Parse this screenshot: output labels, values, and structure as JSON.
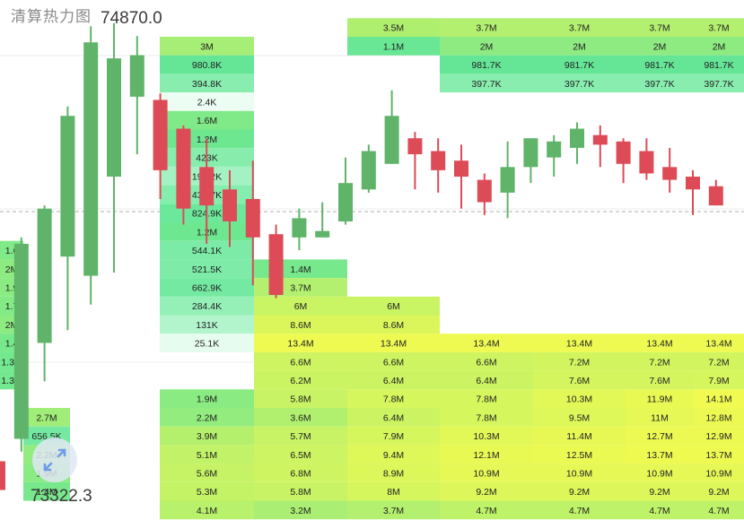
{
  "title": "清算热力图",
  "price_top": "74870.0",
  "price_bottom": "73322.3",
  "colors": {
    "up": "#5fb469",
    "down": "#dd4b57",
    "grid": "#ececec"
  },
  "icons": {
    "expand": "expand-arrows-icon"
  },
  "chart_data": {
    "type": "heatmap",
    "title": "清算热力图",
    "ylim": [
      73322.3,
      74870.0
    ],
    "overlay": "candlestick",
    "candles": [
      {
        "o": 73450,
        "h": 73500,
        "l": 73340,
        "c": 73360
      },
      {
        "o": 73520,
        "h": 74150,
        "l": 73480,
        "c": 74130
      },
      {
        "o": 73820,
        "h": 74250,
        "l": 73700,
        "c": 74240
      },
      {
        "o": 74090,
        "h": 74560,
        "l": 73860,
        "c": 74530
      },
      {
        "o": 74030,
        "h": 74810,
        "l": 73940,
        "c": 74760
      },
      {
        "o": 74340,
        "h": 74820,
        "l": 74040,
        "c": 74710
      },
      {
        "o": 74590,
        "h": 74780,
        "l": 74410,
        "c": 74720
      },
      {
        "o": 74580,
        "h": 74600,
        "l": 74270,
        "c": 74360
      },
      {
        "o": 74490,
        "h": 74500,
        "l": 74190,
        "c": 74240
      },
      {
        "o": 74370,
        "h": 74460,
        "l": 74130,
        "c": 74250
      },
      {
        "o": 74300,
        "h": 74360,
        "l": 74120,
        "c": 74200
      },
      {
        "o": 74270,
        "h": 74390,
        "l": 74000,
        "c": 74150
      },
      {
        "o": 74160,
        "h": 74190,
        "l": 73960,
        "c": 73970
      },
      {
        "o": 74150,
        "h": 74240,
        "l": 74110,
        "c": 74210
      },
      {
        "o": 74150,
        "h": 74260,
        "l": 74150,
        "c": 74170
      },
      {
        "o": 74200,
        "h": 74400,
        "l": 74190,
        "c": 74320
      },
      {
        "o": 74300,
        "h": 74440,
        "l": 74290,
        "c": 74420
      },
      {
        "o": 74380,
        "h": 74610,
        "l": 74380,
        "c": 74530
      },
      {
        "o": 74460,
        "h": 74480,
        "l": 74300,
        "c": 74410
      },
      {
        "o": 74420,
        "h": 74460,
        "l": 74290,
        "c": 74360
      },
      {
        "o": 74390,
        "h": 74440,
        "l": 74240,
        "c": 74340
      },
      {
        "o": 74330,
        "h": 74350,
        "l": 74220,
        "c": 74260
      },
      {
        "o": 74290,
        "h": 74450,
        "l": 74210,
        "c": 74370
      },
      {
        "o": 74370,
        "h": 74460,
        "l": 74320,
        "c": 74460
      },
      {
        "o": 74400,
        "h": 74470,
        "l": 74340,
        "c": 74450
      },
      {
        "o": 74430,
        "h": 74510,
        "l": 74380,
        "c": 74490
      },
      {
        "o": 74470,
        "h": 74500,
        "l": 74370,
        "c": 74440
      },
      {
        "o": 74450,
        "h": 74460,
        "l": 74320,
        "c": 74380
      },
      {
        "o": 74420,
        "h": 74460,
        "l": 74330,
        "c": 74350
      },
      {
        "o": 74370,
        "h": 74430,
        "l": 74290,
        "c": 74330
      },
      {
        "o": 74340,
        "h": 74360,
        "l": 74220,
        "c": 74300
      },
      {
        "o": 74310,
        "h": 74330,
        "l": 74250,
        "c": 74250
      }
    ],
    "cells": [
      {
        "c": 3,
        "r": 0,
        "v": "3M"
      },
      {
        "c": 3,
        "r": 1,
        "v": "980.8K"
      },
      {
        "c": 3,
        "r": 2,
        "v": "394.8K"
      },
      {
        "c": 3,
        "r": 3,
        "v": "2.4K"
      },
      {
        "c": 3,
        "r": 4,
        "v": "1.6M"
      },
      {
        "c": 3,
        "r": 5,
        "v": "1.2M"
      },
      {
        "c": 3,
        "r": 6,
        "v": "423K"
      },
      {
        "c": 3,
        "r": 7,
        "v": "191.2K"
      },
      {
        "c": 3,
        "r": 8,
        "v": "432.7K"
      },
      {
        "c": 3,
        "r": 9,
        "v": "824.9K"
      },
      {
        "c": 3,
        "r": 10,
        "v": "1.2M"
      },
      {
        "c": 3,
        "r": 11,
        "v": "544.1K"
      },
      {
        "c": 3,
        "r": 12,
        "v": "521.5K"
      },
      {
        "c": 3,
        "r": 13,
        "v": "662.9K"
      },
      {
        "c": 3,
        "r": 14,
        "v": "284.4K"
      },
      {
        "c": 3,
        "r": 15,
        "v": "131K"
      },
      {
        "c": 3,
        "r": 16,
        "v": "25.1K"
      },
      {
        "c": 3,
        "r": 19,
        "v": "1.9M"
      },
      {
        "c": 3,
        "r": 20,
        "v": "2.2M"
      },
      {
        "c": 3,
        "r": 21,
        "v": "3.9M"
      },
      {
        "c": 3,
        "r": 22,
        "v": "5.1M"
      },
      {
        "c": 3,
        "r": 23,
        "v": "5.6M"
      },
      {
        "c": 3,
        "r": 24,
        "v": "5.3M"
      },
      {
        "c": 3,
        "r": 25,
        "v": "4.1M"
      },
      {
        "c": 4,
        "r": 12,
        "v": "1.4M"
      },
      {
        "c": 4,
        "r": 13,
        "v": "3.7M"
      },
      {
        "c": 4,
        "r": 14,
        "v": "6M"
      },
      {
        "c": 4,
        "r": 15,
        "v": "8.6M"
      },
      {
        "c": 4,
        "r": 16,
        "v": "13.4M"
      },
      {
        "c": 4,
        "r": 17,
        "v": "6.6M"
      },
      {
        "c": 4,
        "r": 18,
        "v": "6.2M"
      },
      {
        "c": 4,
        "r": 19,
        "v": "5.8M"
      },
      {
        "c": 4,
        "r": 20,
        "v": "3.6M"
      },
      {
        "c": 4,
        "r": 21,
        "v": "5.7M"
      },
      {
        "c": 4,
        "r": 22,
        "v": "6.5M"
      },
      {
        "c": 4,
        "r": 23,
        "v": "6.8M"
      },
      {
        "c": 4,
        "r": 24,
        "v": "5.8M"
      },
      {
        "c": 4,
        "r": 25,
        "v": "3.2M"
      },
      {
        "c": 5,
        "r": -1,
        "v": "3.5M"
      },
      {
        "c": 5,
        "r": 0,
        "v": "1.1M"
      },
      {
        "c": 5,
        "r": 14,
        "v": "6M"
      },
      {
        "c": 5,
        "r": 15,
        "v": "8.6M"
      },
      {
        "c": 5,
        "r": 16,
        "v": "13.4M"
      },
      {
        "c": 5,
        "r": 17,
        "v": "6.6M"
      },
      {
        "c": 5,
        "r": 18,
        "v": "6.4M"
      },
      {
        "c": 5,
        "r": 19,
        "v": "7.8M"
      },
      {
        "c": 5,
        "r": 20,
        "v": "6.4M"
      },
      {
        "c": 5,
        "r": 21,
        "v": "7.9M"
      },
      {
        "c": 5,
        "r": 22,
        "v": "9.4M"
      },
      {
        "c": 5,
        "r": 23,
        "v": "8.9M"
      },
      {
        "c": 5,
        "r": 24,
        "v": "8M"
      },
      {
        "c": 5,
        "r": 25,
        "v": "3.7M"
      },
      {
        "c": 6,
        "r": -1,
        "v": "3.7M"
      },
      {
        "c": 6,
        "r": 0,
        "v": "2M"
      },
      {
        "c": 6,
        "r": 1,
        "v": "981.7K"
      },
      {
        "c": 6,
        "r": 2,
        "v": "397.7K"
      },
      {
        "c": 6,
        "r": 16,
        "v": "13.4M"
      },
      {
        "c": 6,
        "r": 17,
        "v": "6.6M"
      },
      {
        "c": 6,
        "r": 18,
        "v": "6.4M"
      },
      {
        "c": 6,
        "r": 19,
        "v": "7.8M"
      },
      {
        "c": 6,
        "r": 20,
        "v": "7.8M"
      },
      {
        "c": 6,
        "r": 21,
        "v": "10.3M"
      },
      {
        "c": 6,
        "r": 22,
        "v": "12.1M"
      },
      {
        "c": 6,
        "r": 23,
        "v": "10.9M"
      },
      {
        "c": 6,
        "r": 24,
        "v": "9.2M"
      },
      {
        "c": 6,
        "r": 25,
        "v": "4.7M"
      },
      {
        "c": 7,
        "r": -1,
        "v": "3.7M"
      },
      {
        "c": 7,
        "r": 0,
        "v": "2M"
      },
      {
        "c": 7,
        "r": 1,
        "v": "981.7K"
      },
      {
        "c": 7,
        "r": 2,
        "v": "397.7K"
      },
      {
        "c": 7,
        "r": 16,
        "v": "13.4M"
      },
      {
        "c": 7,
        "r": 17,
        "v": "7.2M"
      },
      {
        "c": 7,
        "r": 18,
        "v": "7.6M"
      },
      {
        "c": 7,
        "r": 19,
        "v": "10.3M"
      },
      {
        "c": 7,
        "r": 20,
        "v": "9.5M"
      },
      {
        "c": 7,
        "r": 21,
        "v": "11.4M"
      },
      {
        "c": 7,
        "r": 22,
        "v": "12.5M"
      },
      {
        "c": 7,
        "r": 23,
        "v": "10.9M"
      },
      {
        "c": 7,
        "r": 24,
        "v": "9.2M"
      },
      {
        "c": 7,
        "r": 25,
        "v": "4.7M"
      },
      {
        "c": 8,
        "r": -1,
        "v": "3.7M"
      },
      {
        "c": 8,
        "r": 0,
        "v": "2M"
      },
      {
        "c": 8,
        "r": 1,
        "v": "981.7K"
      },
      {
        "c": 8,
        "r": 2,
        "v": "397.7K"
      },
      {
        "c": 8,
        "r": 16,
        "v": "13.4M"
      },
      {
        "c": 8,
        "r": 17,
        "v": "7.2M"
      },
      {
        "c": 8,
        "r": 18,
        "v": "7.6M"
      },
      {
        "c": 8,
        "r": 19,
        "v": "11.9M"
      },
      {
        "c": 8,
        "r": 20,
        "v": "11M"
      },
      {
        "c": 8,
        "r": 21,
        "v": "12.7M"
      },
      {
        "c": 8,
        "r": 22,
        "v": "13.7M"
      },
      {
        "c": 8,
        "r": 23,
        "v": "10.9M"
      },
      {
        "c": 8,
        "r": 24,
        "v": "9.2M"
      },
      {
        "c": 8,
        "r": 25,
        "v": "4.7M"
      },
      {
        "c": 9,
        "r": -1,
        "v": "3.7M"
      },
      {
        "c": 9,
        "r": 0,
        "v": "2M"
      },
      {
        "c": 9,
        "r": 1,
        "v": "981.7K"
      },
      {
        "c": 9,
        "r": 2,
        "v": "397.7K"
      },
      {
        "c": 9,
        "r": 16,
        "v": "13.4M"
      },
      {
        "c": 9,
        "r": 17,
        "v": "7.2M"
      },
      {
        "c": 9,
        "r": 18,
        "v": "7.9M"
      },
      {
        "c": 9,
        "r": 19,
        "v": "14.1M"
      },
      {
        "c": 9,
        "r": 20,
        "v": "12.8M"
      },
      {
        "c": 9,
        "r": 21,
        "v": "12.9M"
      },
      {
        "c": 9,
        "r": 22,
        "v": "13.7M"
      },
      {
        "c": 9,
        "r": 23,
        "v": "10.9M"
      },
      {
        "c": 9,
        "r": 24,
        "v": "9.2M"
      },
      {
        "c": 9,
        "r": 25,
        "v": "4.7M"
      },
      {
        "c": 1,
        "r": 20,
        "v": "2.7M"
      },
      {
        "c": 1,
        "r": 21,
        "v": "656.5K"
      },
      {
        "c": 1,
        "r": 22,
        "v": "2.2M"
      },
      {
        "c": 1,
        "r": 23,
        "v": "1.9M"
      },
      {
        "c": 1,
        "r": 24,
        "v": "1.4M"
      },
      {
        "c": 0,
        "r": 11,
        "v": "1.6"
      },
      {
        "c": 0,
        "r": 12,
        "v": "2M"
      },
      {
        "c": 0,
        "r": 13,
        "v": "1.9"
      },
      {
        "c": 0,
        "r": 14,
        "v": "1.7"
      },
      {
        "c": 0,
        "r": 15,
        "v": "2M"
      },
      {
        "c": 0,
        "r": 16,
        "v": "1.4"
      },
      {
        "c": 0,
        "r": 17,
        "v": "1.3M"
      },
      {
        "c": 0,
        "r": 18,
        "v": "1.3M"
      }
    ]
  }
}
